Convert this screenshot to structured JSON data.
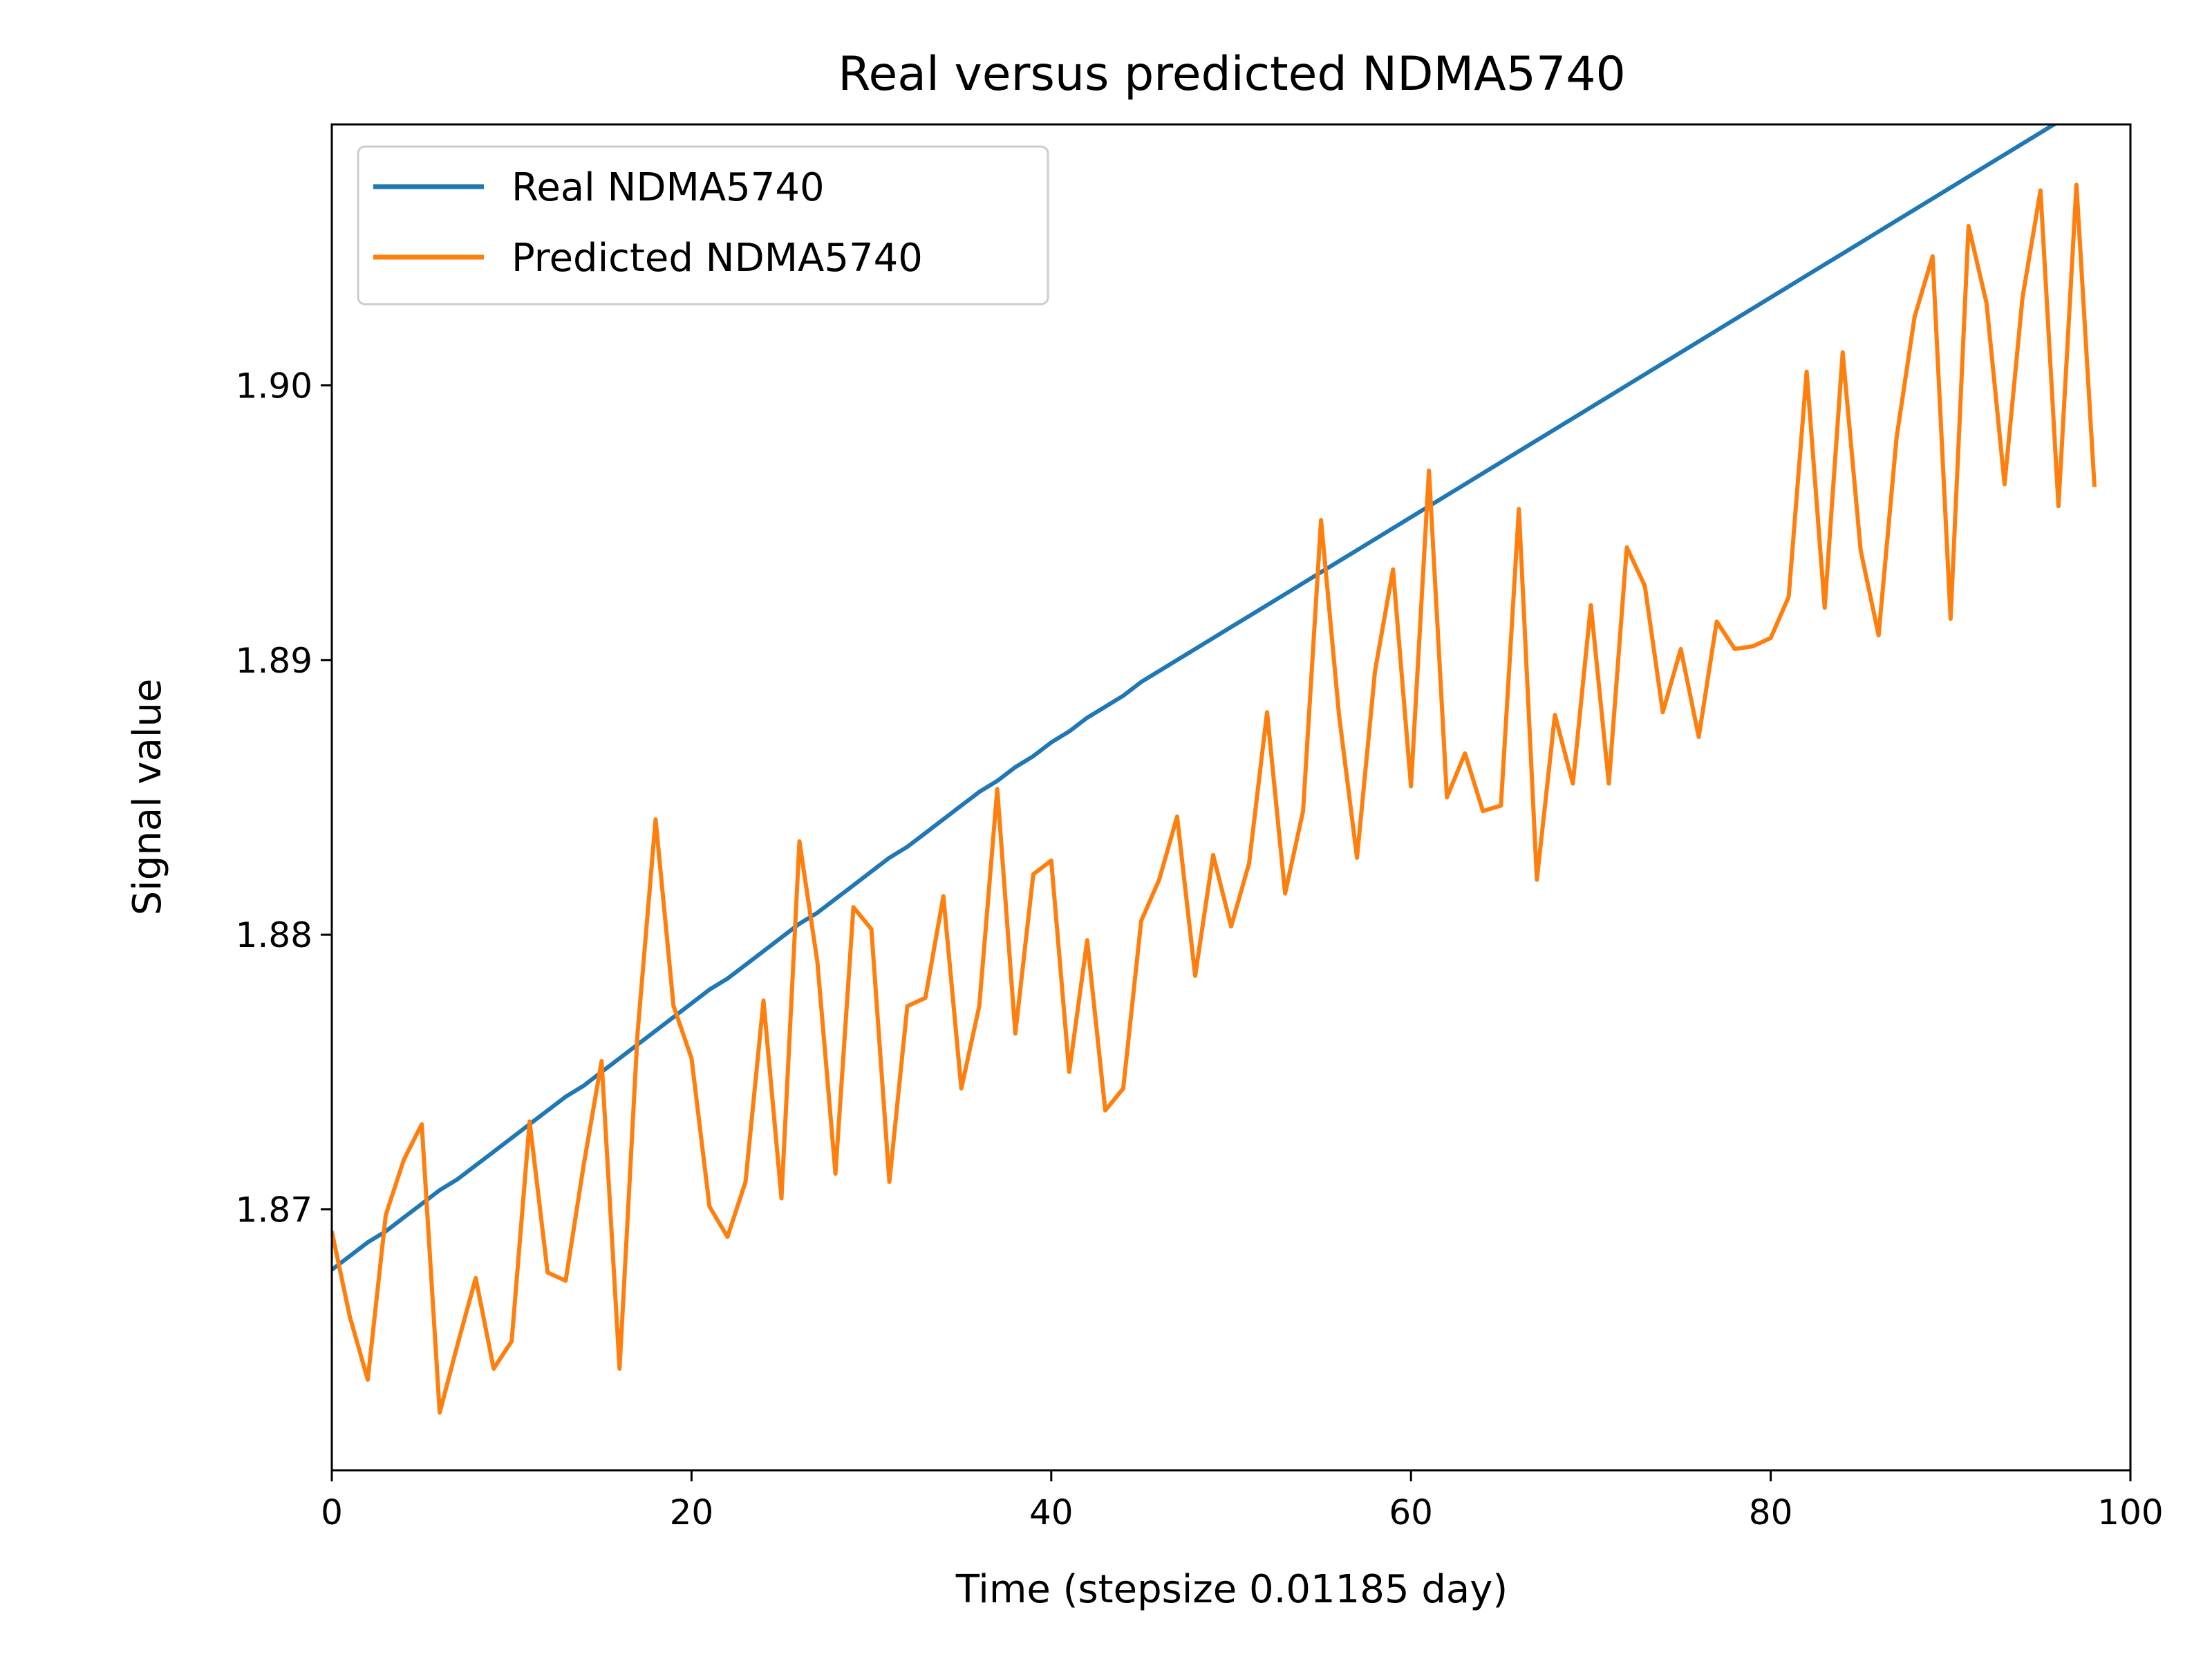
{
  "chart_data": {
    "type": "line",
    "title": "Real versus predicted NDMA5740",
    "xlabel": "Time (stepsize 0.01185 day)",
    "ylabel": "Signal value",
    "xlim": [
      0,
      100
    ],
    "ylim": [
      1.8605,
      1.9095
    ],
    "xticks": [
      0,
      20,
      40,
      60,
      80,
      100
    ],
    "xtick_labels": [
      "0",
      "20",
      "40",
      "60",
      "80",
      "100"
    ],
    "yticks": [
      1.87,
      1.88,
      1.89,
      1.9
    ],
    "ytick_labels": [
      "1.87",
      "1.88",
      "1.89",
      "1.90"
    ],
    "grid": false,
    "legend_position": "top-left",
    "x_start": 0,
    "x_step": 1,
    "series": [
      {
        "name": "Real NDMA5740",
        "color": "#1f77b4",
        "values": [
          1.8678,
          1.8683,
          1.8688,
          1.8692,
          1.8697,
          1.8702,
          1.8707,
          1.8711,
          1.8716,
          1.8721,
          1.8726,
          1.8731,
          1.8736,
          1.8741,
          1.8745,
          1.875,
          1.8755,
          1.876,
          1.8765,
          1.877,
          1.8775,
          1.878,
          1.8784,
          1.8789,
          1.8794,
          1.8799,
          1.8804,
          1.8808,
          1.8813,
          1.8818,
          1.8823,
          1.8828,
          1.8832,
          1.8837,
          1.8842,
          1.8847,
          1.8852,
          1.8856,
          1.8861,
          1.8865,
          1.887,
          1.8874,
          1.8879,
          1.8883,
          1.8887,
          1.8892,
          1.8896,
          1.89,
          1.8904,
          1.8908,
          1.8912,
          1.8916,
          1.892,
          1.8924,
          1.8928,
          1.8932,
          1.8936,
          1.894,
          1.8944,
          1.8948,
          1.8952,
          1.8956,
          1.896,
          1.8964,
          1.8968,
          1.8972,
          1.8976,
          1.898,
          1.8984,
          1.8988,
          1.8992,
          1.8996,
          1.9,
          1.9004,
          1.9008,
          1.9012,
          1.9016,
          1.902,
          1.9024,
          1.9028,
          1.9032,
          1.9036,
          1.904,
          1.9044,
          1.9048,
          1.9052,
          1.9056,
          1.906,
          1.9064,
          1.9068,
          1.9072,
          1.9076,
          1.908,
          1.9084,
          1.9088,
          1.9092,
          1.9096,
          1.91,
          1.9103
        ]
      },
      {
        "name": "Predicted NDMA5740",
        "color": "#ff7f0e",
        "values": [
          1.8692,
          1.8661,
          1.8638,
          1.8698,
          1.8718,
          1.8731,
          1.8626,
          1.8651,
          1.8675,
          1.8642,
          1.8652,
          1.8732,
          1.8677,
          1.8674,
          1.8716,
          1.8754,
          1.8642,
          1.8764,
          1.8842,
          1.8774,
          1.8755,
          1.8701,
          1.869,
          1.871,
          1.8776,
          1.8704,
          1.8834,
          1.879,
          1.8713,
          1.881,
          1.8802,
          1.871,
          1.8774,
          1.8777,
          1.8814,
          1.8744,
          1.8774,
          1.8853,
          1.8764,
          1.8822,
          1.8827,
          1.875,
          1.8798,
          1.8736,
          1.8744,
          1.8805,
          1.882,
          1.8843,
          1.8785,
          1.8829,
          1.8803,
          1.8826,
          1.8881,
          1.8815,
          1.8845,
          1.8951,
          1.888,
          1.8828,
          1.8896,
          1.8933,
          1.8854,
          1.8969,
          1.885,
          1.8866,
          1.8845,
          1.8847,
          1.8955,
          1.882,
          1.888,
          1.8855,
          1.892,
          1.8855,
          1.8941,
          1.8927,
          1.8881,
          1.8904,
          1.8872,
          1.8914,
          1.8904,
          1.8905,
          1.8908,
          1.8923,
          1.9005,
          1.8919,
          1.9012,
          1.894,
          1.8909,
          1.8981,
          1.9025,
          1.9047,
          1.8915,
          1.9058,
          1.903,
          1.8964,
          1.9032,
          1.9071,
          1.8956,
          1.9073,
          1.8963
        ]
      }
    ]
  }
}
